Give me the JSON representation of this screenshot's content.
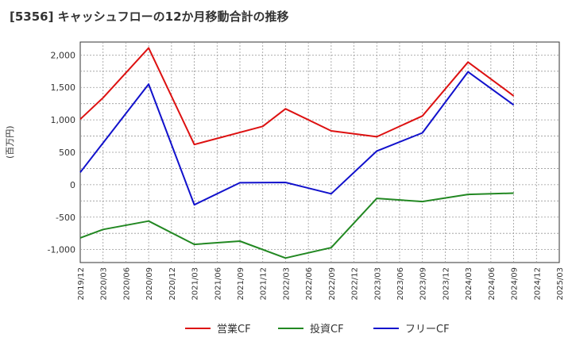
{
  "chart_data": {
    "type": "line",
    "title": "[5356]  キャッシュフローの12か月移動合計の推移",
    "ylabel": "(百万円)",
    "xlabel": "",
    "ylim": [
      -1200,
      2200
    ],
    "yticks": [
      -1000,
      -500,
      0,
      500,
      1000,
      1500,
      2000
    ],
    "ytick_labels": [
      "-1,000",
      "-500",
      "0",
      "500",
      "1,000",
      "1,500",
      "2,000"
    ],
    "x_labels": [
      "2019/12",
      "2020/03",
      "2020/06",
      "2020/09",
      "2020/12",
      "2021/03",
      "2021/06",
      "2021/09",
      "2021/12",
      "2022/03",
      "2022/06",
      "2022/09",
      "2022/12",
      "2023/03",
      "2023/06",
      "2023/09",
      "2023/12",
      "2024/03",
      "2024/06",
      "2024/09",
      "2024/12",
      "2025/03"
    ],
    "grid": true,
    "legend_position": "bottom",
    "series": [
      {
        "name": "営業CF",
        "color": "#dd1111",
        "points": [
          [
            0,
            1010
          ],
          [
            1,
            1340
          ],
          [
            3,
            2110
          ],
          [
            5,
            620
          ],
          [
            8,
            900
          ],
          [
            9,
            1170
          ],
          [
            11,
            830
          ],
          [
            13,
            740
          ],
          [
            15,
            1060
          ],
          [
            17,
            1890
          ],
          [
            19,
            1370
          ]
        ]
      },
      {
        "name": "投資CF",
        "color": "#228822",
        "points": [
          [
            0,
            -820
          ],
          [
            1,
            -690
          ],
          [
            3,
            -560
          ],
          [
            5,
            -920
          ],
          [
            7,
            -870
          ],
          [
            9,
            -1130
          ],
          [
            11,
            -970
          ],
          [
            13,
            -210
          ],
          [
            15,
            -260
          ],
          [
            17,
            -150
          ],
          [
            19,
            -130
          ]
        ]
      },
      {
        "name": "フリーCF",
        "color": "#1111cc",
        "points": [
          [
            0,
            190
          ],
          [
            3,
            1550
          ],
          [
            5,
            -310
          ],
          [
            7,
            30
          ],
          [
            9,
            35
          ],
          [
            11,
            -140
          ],
          [
            13,
            520
          ],
          [
            15,
            800
          ],
          [
            17,
            1740
          ],
          [
            19,
            1230
          ]
        ]
      }
    ]
  }
}
